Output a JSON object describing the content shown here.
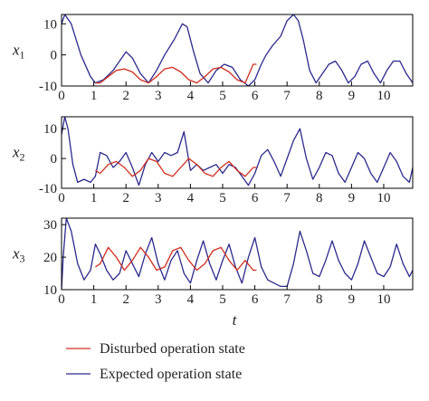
{
  "legend": [
    {
      "label": "Disturbed operation state",
      "color": "#d12d1f"
    },
    {
      "label": "Expected operation state",
      "color": "#2b2a8c"
    }
  ],
  "chart_data": [
    {
      "type": "line",
      "ylabel": "x",
      "ylabel_sub": "1",
      "xlabel": "",
      "xlim": [
        0,
        10.9
      ],
      "ylim": [
        -10,
        13
      ],
      "y_ticks": [
        -10,
        0,
        10
      ],
      "x_ticks": [
        0,
        1,
        2,
        3,
        4,
        5,
        6,
        7,
        8,
        9,
        10
      ],
      "series": [
        {
          "name": "Expected operation state",
          "color": "#2b2a8c",
          "x": [
            0,
            0.1,
            0.3,
            0.6,
            0.9,
            1.05,
            1.3,
            1.6,
            1.8,
            2.0,
            2.2,
            2.45,
            2.7,
            2.95,
            3.2,
            3.5,
            3.75,
            3.9,
            4.1,
            4.3,
            4.55,
            4.8,
            5.05,
            5.3,
            5.55,
            5.8,
            6.0,
            6.2,
            6.35,
            6.55,
            6.8,
            7.0,
            7.2,
            7.35,
            7.5,
            7.7,
            7.9,
            8.1,
            8.3,
            8.5,
            8.7,
            8.9,
            9.1,
            9.3,
            9.5,
            9.7,
            9.9,
            10.1,
            10.3,
            10.5,
            10.7,
            10.9
          ],
          "y": [
            10,
            13,
            10,
            0,
            -7,
            -9,
            -8,
            -5,
            -2,
            1,
            -1,
            -6,
            -9,
            -5,
            0,
            5,
            10,
            9,
            1,
            -6,
            -9,
            -5,
            -3,
            -4,
            -8,
            -10,
            -8,
            -3,
            0,
            3,
            6,
            11,
            13,
            11,
            5,
            -5,
            -9,
            -6,
            -3,
            -2,
            -5,
            -9,
            -7,
            -3,
            -2,
            -6,
            -9,
            -5,
            -2,
            -2,
            -6,
            -9
          ]
        },
        {
          "name": "Disturbed operation state",
          "color": "#d12d1f",
          "x": [
            1.05,
            1.2,
            1.45,
            1.7,
            1.95,
            2.2,
            2.45,
            2.7,
            2.95,
            3.2,
            3.45,
            3.7,
            3.95,
            4.2,
            4.45,
            4.7,
            4.95,
            5.2,
            5.45,
            5.7,
            5.95,
            6.05
          ],
          "y": [
            -9,
            -9,
            -7,
            -5,
            -4.5,
            -5.5,
            -8,
            -9,
            -7,
            -4.5,
            -4,
            -5.5,
            -8,
            -9,
            -7,
            -4.5,
            -4,
            -5.5,
            -8,
            -9,
            -3,
            -3
          ]
        }
      ]
    },
    {
      "type": "line",
      "ylabel": "x",
      "ylabel_sub": "2",
      "xlabel": "",
      "xlim": [
        0,
        10.9
      ],
      "ylim": [
        -10,
        14
      ],
      "y_ticks": [
        -10,
        0,
        10
      ],
      "x_ticks": [
        0,
        1,
        2,
        3,
        4,
        5,
        6,
        7,
        8,
        9,
        10
      ],
      "series": [
        {
          "name": "Expected operation state",
          "color": "#2b2a8c",
          "x": [
            0,
            0.1,
            0.2,
            0.35,
            0.5,
            0.7,
            0.9,
            1.05,
            1.2,
            1.4,
            1.6,
            1.8,
            2.0,
            2.2,
            2.4,
            2.6,
            2.8,
            3.0,
            3.2,
            3.4,
            3.6,
            3.8,
            4.0,
            4.2,
            4.4,
            4.6,
            4.8,
            5.0,
            5.2,
            5.4,
            5.6,
            5.8,
            6.0,
            6.2,
            6.4,
            6.6,
            6.8,
            7.0,
            7.2,
            7.4,
            7.6,
            7.8,
            8.0,
            8.2,
            8.4,
            8.6,
            8.8,
            9.0,
            9.2,
            9.4,
            9.6,
            9.8,
            10.0,
            10.2,
            10.4,
            10.6,
            10.8,
            10.9
          ],
          "y": [
            8,
            14,
            10,
            -2,
            -8,
            -7,
            -8,
            -6,
            2,
            1,
            -3,
            -1,
            2,
            -3,
            -9,
            -2,
            2,
            -1,
            2,
            1,
            2,
            9,
            -4,
            -2,
            -4,
            -3,
            -2,
            -5,
            -2,
            -3,
            -6,
            -9,
            -5,
            1,
            3,
            -1,
            -6,
            0,
            6,
            10,
            0,
            -7,
            -3,
            2,
            1,
            -5,
            -8,
            -3,
            2,
            0,
            -5,
            -8,
            -3,
            2,
            -1,
            -6,
            -8,
            -3
          ]
        },
        {
          "name": "Disturbed operation state",
          "color": "#d12d1f",
          "x": [
            1.05,
            1.2,
            1.45,
            1.7,
            1.95,
            2.2,
            2.45,
            2.7,
            2.95,
            3.2,
            3.45,
            3.7,
            3.95,
            4.2,
            4.45,
            4.7,
            4.95,
            5.2,
            5.45,
            5.7,
            5.95,
            6.05
          ],
          "y": [
            -4,
            -5,
            -2,
            -1,
            -3,
            -6,
            -4,
            0,
            -1,
            -5,
            -6,
            -3,
            0,
            -2,
            -5,
            -6,
            -3,
            -1,
            -4,
            -6,
            -3,
            -3
          ]
        }
      ]
    },
    {
      "type": "line",
      "ylabel": "x",
      "ylabel_sub": "3",
      "xlabel": "t",
      "xlim": [
        0,
        10.9
      ],
      "ylim": [
        10,
        32
      ],
      "y_ticks": [
        10,
        20,
        30
      ],
      "x_ticks": [
        0,
        1,
        2,
        3,
        4,
        5,
        6,
        7,
        8,
        9,
        10
      ],
      "series": [
        {
          "name": "Expected operation state",
          "color": "#2b2a8c",
          "x": [
            0,
            0.05,
            0.15,
            0.3,
            0.5,
            0.7,
            0.9,
            1.05,
            1.2,
            1.4,
            1.6,
            1.8,
            2.0,
            2.2,
            2.4,
            2.6,
            2.8,
            3.0,
            3.2,
            3.4,
            3.6,
            3.8,
            4.0,
            4.2,
            4.4,
            4.6,
            4.8,
            5.0,
            5.2,
            5.4,
            5.6,
            5.8,
            6.0,
            6.2,
            6.4,
            6.6,
            6.8,
            7.0,
            7.2,
            7.4,
            7.6,
            7.8,
            8.0,
            8.2,
            8.4,
            8.6,
            8.8,
            9.0,
            9.2,
            9.4,
            9.6,
            9.8,
            10.0,
            10.2,
            10.4,
            10.6,
            10.8,
            10.9
          ],
          "y": [
            10,
            20,
            32,
            28,
            18,
            13,
            16,
            24,
            21,
            16,
            13,
            15,
            22,
            18,
            14,
            21,
            26,
            18,
            13,
            19,
            22,
            15,
            12,
            19,
            25,
            18,
            13,
            19,
            24,
            17,
            12,
            20,
            26,
            17,
            13,
            12,
            11,
            11,
            18,
            28,
            22,
            15,
            14,
            19,
            25,
            19,
            15,
            13,
            18,
            25,
            20,
            15,
            14,
            17,
            24,
            18,
            14,
            16
          ]
        },
        {
          "name": "Disturbed operation state",
          "color": "#d12d1f",
          "x": [
            1.05,
            1.2,
            1.45,
            1.7,
            1.95,
            2.2,
            2.45,
            2.7,
            2.95,
            3.2,
            3.45,
            3.7,
            3.95,
            4.2,
            4.45,
            4.7,
            4.95,
            5.2,
            5.45,
            5.7,
            5.95,
            6.05
          ],
          "y": [
            17,
            18,
            23,
            20,
            16,
            19,
            23,
            20,
            16,
            17,
            22,
            23,
            19,
            16,
            18,
            22,
            23,
            19,
            16,
            19,
            16,
            16
          ]
        }
      ]
    }
  ]
}
